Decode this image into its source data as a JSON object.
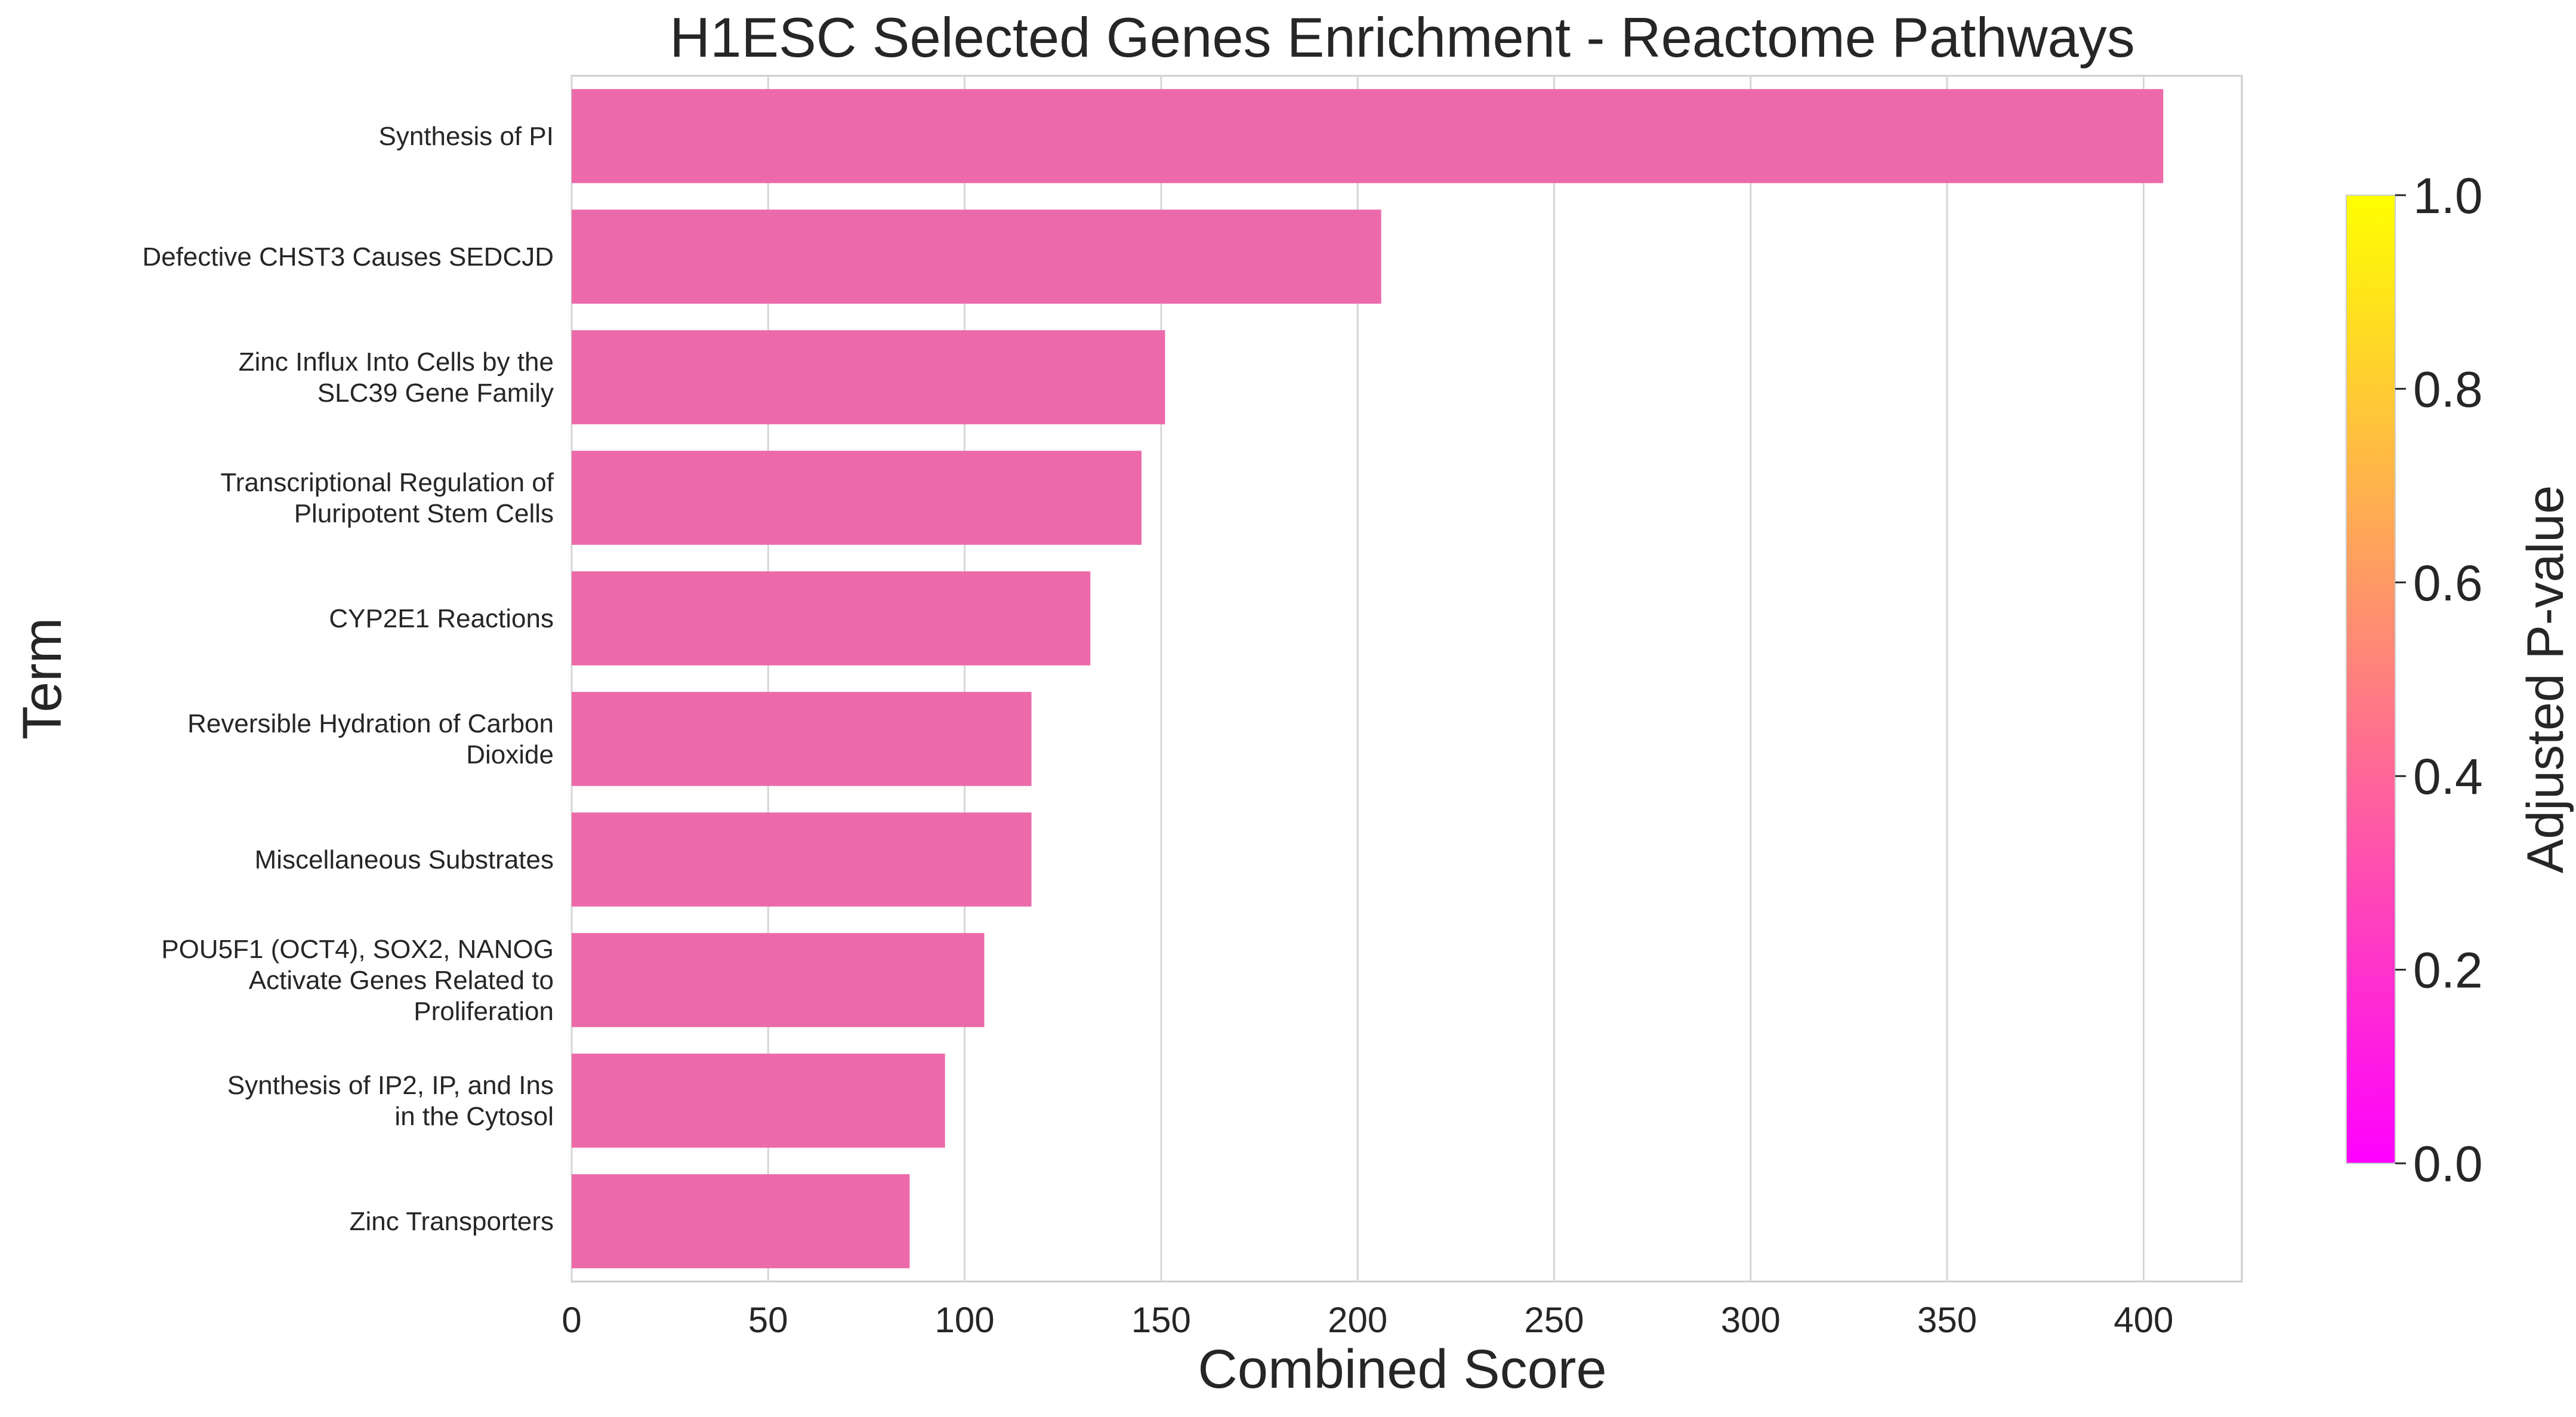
{
  "chart_data": {
    "type": "bar",
    "orientation": "horizontal",
    "title": "H1ESC Selected Genes Enrichment - Reactome Pathways",
    "xlabel": "Combined Score",
    "ylabel": "Term",
    "xlim": [
      0,
      425
    ],
    "x_ticks": [
      "0",
      "50",
      "100",
      "150",
      "200",
      "250",
      "300",
      "350",
      "400"
    ],
    "grid": "vertical",
    "bar_color": "#ec6aa9",
    "categories": [
      [
        "Synthesis of PI"
      ],
      [
        "Defective CHST3 Causes SEDCJD"
      ],
      [
        "Zinc Influx Into Cells by the",
        "SLC39 Gene Family"
      ],
      [
        "Transcriptional Regulation of",
        "Pluripotent Stem Cells"
      ],
      [
        "CYP2E1 Reactions"
      ],
      [
        "Reversible Hydration of Carbon",
        "Dioxide"
      ],
      [
        "Miscellaneous Substrates"
      ],
      [
        "POU5F1 (OCT4), SOX2, NANOG",
        "Activate Genes Related to",
        "Proliferation"
      ],
      [
        "Synthesis of IP2, IP, and Ins",
        "in the Cytosol"
      ],
      [
        "Zinc Transporters"
      ]
    ],
    "values": [
      405,
      206,
      151,
      145,
      132,
      117,
      117,
      105,
      95,
      86
    ],
    "colorbar": {
      "label": "Adjusted P-value",
      "range": [
        0.0,
        1.0
      ],
      "ticks": [
        "0.0",
        "0.2",
        "0.4",
        "0.6",
        "0.8",
        "1.0"
      ],
      "colormap": "spring",
      "color_low": "#ff00ff",
      "color_high": "#ffff00"
    }
  }
}
